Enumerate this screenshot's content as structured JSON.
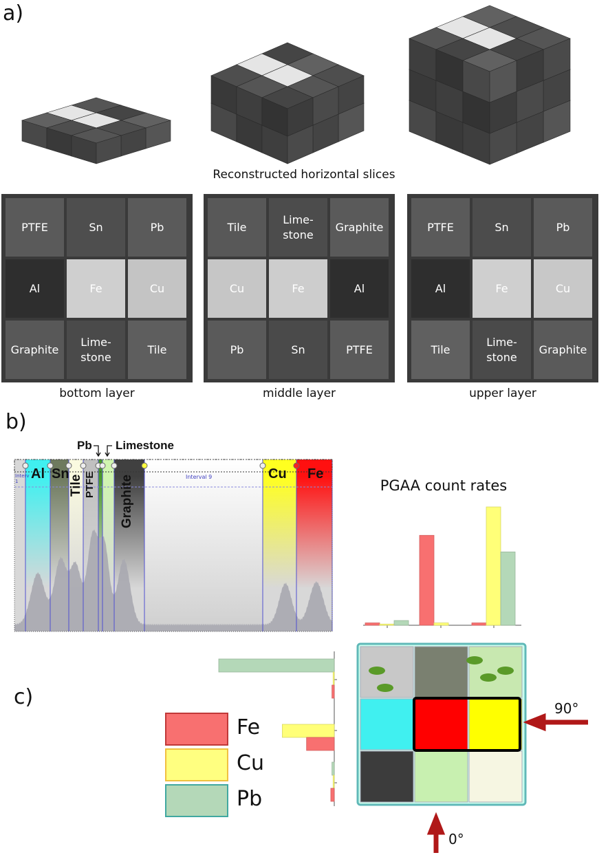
{
  "labels": {
    "a": "a)",
    "b": "b)",
    "c": "c)"
  },
  "panel_a": {
    "slices_title": "Reconstructed horizontal slices",
    "slices": [
      {
        "caption": "bottom layer",
        "cells": [
          "PTFE",
          "Sn",
          "Pb",
          "Al",
          "Fe",
          "Cu",
          "Graphite",
          "Lime-\nstone",
          "Tile"
        ],
        "shades": [
          "#5a5a5a",
          "#4e4e4e",
          "#5a5a5a",
          "#2e2e2e",
          "#cfcfcf",
          "#c4c4c4",
          "#585858",
          "#4a4a4a",
          "#5e5e5e"
        ]
      },
      {
        "caption": "middle layer",
        "cells": [
          "Tile",
          "Lime-\nstone",
          "Graphite",
          "Cu",
          "Fe",
          "Al",
          "Pb",
          "Sn",
          "PTFE"
        ],
        "shades": [
          "#585858",
          "#4c4c4c",
          "#5a5a5a",
          "#c6c6c6",
          "#cdcdcd",
          "#2e2e2e",
          "#5a5a5a",
          "#4a4a4a",
          "#5a5a5a"
        ]
      },
      {
        "caption": "upper layer",
        "cells": [
          "PTFE",
          "Sn",
          "Pb",
          "Al",
          "Fe",
          "Cu",
          "Tile",
          "Lime-\nstone",
          "Graphite"
        ],
        "shades": [
          "#5a5a5a",
          "#4c4c4c",
          "#5a5a5a",
          "#2e2e2e",
          "#cfcfcf",
          "#c8c8c8",
          "#606060",
          "#4a4a4a",
          "#5a5a5a"
        ]
      }
    ]
  },
  "panel_b": {
    "gates": [
      "Al",
      "Sn",
      "Tile",
      "PTFE",
      "Pb",
      "Limestone",
      "Graphite",
      "Cu",
      "Fe"
    ],
    "gate_colors": {
      "Al": "#40f0f0",
      "Sn": "#6e7a5e",
      "Tile": "#fafae0",
      "PTFE": "#c0c0c0",
      "Pb": "#4a9a28",
      "Limestone": "#d0f5b0",
      "Graphite": "#404040",
      "Cu": "#ffff20",
      "Fe": "#ff1010"
    },
    "interval_labels": [
      "Interv 1",
      "Interval 9"
    ]
  },
  "chart_data": [
    {
      "type": "bar",
      "title": "PGAA count rates",
      "categories": [
        "",
        "",
        ""
      ],
      "series": [
        {
          "name": "Fe",
          "color": "#f87070",
          "values": [
            2,
            76,
            2
          ]
        },
        {
          "name": "Cu",
          "color": "#ffff78",
          "values": [
            1,
            2,
            100
          ]
        },
        {
          "name": "Pb",
          "color": "#b4d8b8",
          "values": [
            4,
            0,
            62
          ]
        }
      ],
      "ylim": [
        0,
        100
      ]
    },
    {
      "type": "bar",
      "orientation": "horizontal",
      "categories": [
        "",
        "",
        ""
      ],
      "series": [
        {
          "name": "Pb",
          "color": "#b4d8b8",
          "values": [
            100,
            0,
            2
          ]
        },
        {
          "name": "Cu",
          "color": "#ffff78",
          "values": [
            1,
            45,
            1
          ]
        },
        {
          "name": "Fe",
          "color": "#f87070",
          "values": [
            2,
            24,
            3
          ]
        }
      ],
      "xlim": [
        0,
        100
      ]
    }
  ],
  "panel_c": {
    "legend": [
      {
        "label": "Fe",
        "fill": "#f87070",
        "border": "#c03838"
      },
      {
        "label": "Cu",
        "fill": "#ffff80",
        "border": "#f0c040"
      },
      {
        "label": "Pb",
        "fill": "#b4d8b8",
        "border": "#40a8a0"
      }
    ],
    "map_colors": [
      "#c8c8c8",
      "#7a8070",
      "#c8e8b0",
      "#40f0f0",
      "#ff0000",
      "#ffff00",
      "#3c3c3c",
      "#c8f0b0",
      "#f6f6e2"
    ],
    "arrow_color": "#b01818",
    "angle_90": "90°",
    "angle_0": "0°"
  }
}
